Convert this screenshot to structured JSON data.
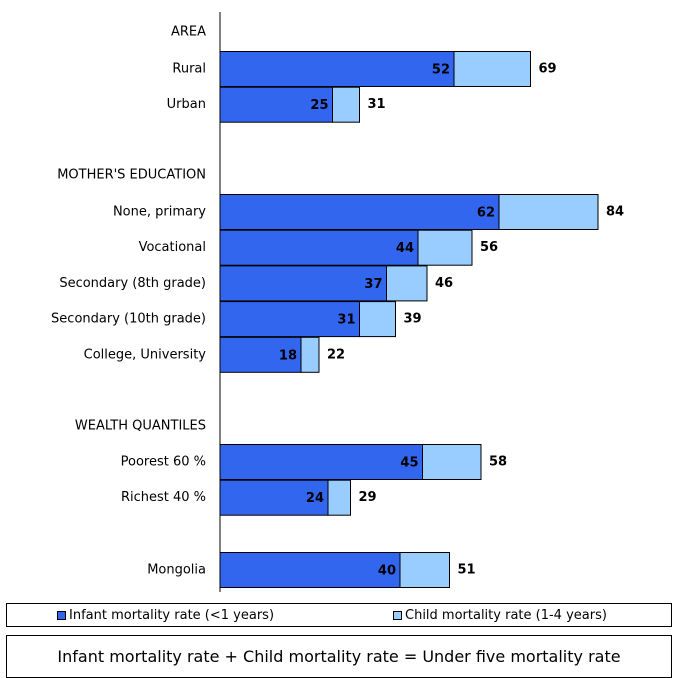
{
  "chart_data": {
    "type": "bar",
    "orientation": "horizontal",
    "stacked": true,
    "groups": [
      {
        "label": "AREA",
        "rows": [
          {
            "label": "Rural",
            "infant": 52,
            "under_five": 69
          },
          {
            "label": "Urban",
            "infant": 25,
            "under_five": 31
          }
        ]
      },
      {
        "label": "MOTHER'S EDUCATION",
        "rows": [
          {
            "label": "None, primary",
            "infant": 62,
            "under_five": 84
          },
          {
            "label": "Vocational",
            "infant": 44,
            "under_five": 56
          },
          {
            "label": "Secondary (8th grade)",
            "infant": 37,
            "under_five": 46
          },
          {
            "label": "Secondary (10th grade)",
            "infant": 31,
            "under_five": 39
          },
          {
            "label": "College, University",
            "infant": 18,
            "under_five": 22
          }
        ]
      },
      {
        "label": "WEALTH QUANTILES",
        "rows": [
          {
            "label": "Poorest 60 %",
            "infant": 45,
            "under_five": 58
          },
          {
            "label": "Richest 40 %",
            "infant": 24,
            "under_five": 29
          }
        ]
      },
      {
        "label": "",
        "rows": [
          {
            "label": "Mongolia",
            "infant": 40,
            "under_five": 51
          }
        ]
      }
    ],
    "series": [
      {
        "name": "Infant mortality rate (<1 years)",
        "color": "#3366ee"
      },
      {
        "name": "Child mortality rate (1-4 years)",
        "color": "#99ccff"
      }
    ],
    "legend_position": "bottom",
    "grid": false,
    "xlim": [
      0,
      100
    ]
  },
  "legend": {
    "infant_label": "Infant mortality rate (<1 years)",
    "child_label": "Child mortality rate (1-4 years)"
  },
  "note": "Infant mortality rate + Child mortality rate = Under five mortality rate"
}
